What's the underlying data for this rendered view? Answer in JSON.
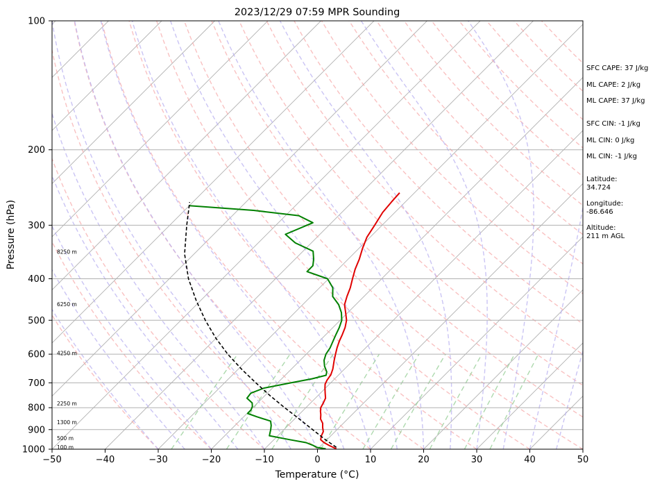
{
  "chart_data": {
    "type": "line",
    "subtype": "skew-T log-P sounding",
    "title": "2023/12/29 07:59 MPR Sounding",
    "xlabel": "Temperature (°C)",
    "ylabel": "Pressure (hPa)",
    "xlim": [
      -50,
      50
    ],
    "ylim": [
      1000,
      100
    ],
    "yscale": "log",
    "x_ticks": [
      -50,
      -40,
      -30,
      -20,
      -10,
      0,
      10,
      20,
      30,
      40,
      50
    ],
    "y_ticks": [
      100,
      200,
      300,
      400,
      500,
      600,
      700,
      800,
      900,
      1000
    ],
    "grid": true,
    "background_lines": {
      "isotherms": "gray solid, skewed",
      "dry_adiabats": "red dashed",
      "moist_adiabats": "blue dashed",
      "mixing_ratio_lines": "green dashed"
    },
    "height_labels": [
      {
        "label": "100 m",
        "pressure": 988
      },
      {
        "label": "500 m",
        "pressure": 942
      },
      {
        "label": "1300 m",
        "pressure": 864
      },
      {
        "label": "2250 m",
        "pressure": 781
      },
      {
        "label": "4250 m",
        "pressure": 596
      },
      {
        "label": "6250 m",
        "pressure": 458
      },
      {
        "label": "8250 m",
        "pressure": 346
      }
    ],
    "series": [
      {
        "key": "temperature",
        "color": "#e00000",
        "points": [
          [
            998,
            3.5
          ],
          [
            980,
            1.5
          ],
          [
            965,
            0
          ],
          [
            950,
            -1.2
          ],
          [
            930,
            -1.8
          ],
          [
            910,
            -2.2
          ],
          [
            890,
            -3.1
          ],
          [
            870,
            -3.9
          ],
          [
            850,
            -5.1
          ],
          [
            830,
            -5.9
          ],
          [
            815,
            -6.6
          ],
          [
            800,
            -7.2
          ],
          [
            780,
            -7.6
          ],
          [
            760,
            -8.1
          ],
          [
            740,
            -9.1
          ],
          [
            720,
            -10.1
          ],
          [
            705,
            -10.8
          ],
          [
            690,
            -11.2
          ],
          [
            670,
            -11.5
          ],
          [
            650,
            -12.2
          ],
          [
            620,
            -13.6
          ],
          [
            600,
            -14.5
          ],
          [
            580,
            -15.4
          ],
          [
            560,
            -16.2
          ],
          [
            540,
            -16.9
          ],
          [
            520,
            -17.7
          ],
          [
            500,
            -18.8
          ],
          [
            480,
            -20.4
          ],
          [
            460,
            -22.1
          ],
          [
            440,
            -23.2
          ],
          [
            420,
            -24.2
          ],
          [
            400,
            -25.5
          ],
          [
            380,
            -26.8
          ],
          [
            360,
            -27.9
          ],
          [
            340,
            -29.3
          ],
          [
            320,
            -30.6
          ],
          [
            300,
            -31.4
          ],
          [
            280,
            -32.3
          ],
          [
            265,
            -32.6
          ],
          [
            252,
            -32.8
          ]
        ]
      },
      {
        "key": "dewpoint",
        "color": "#008000",
        "points": [
          [
            998,
            1.5
          ],
          [
            990,
            -0.5
          ],
          [
            980,
            -1.5
          ],
          [
            965,
            -3.4
          ],
          [
            950,
            -7
          ],
          [
            930,
            -11.6
          ],
          [
            900,
            -12.5
          ],
          [
            880,
            -13.2
          ],
          [
            860,
            -14.1
          ],
          [
            840,
            -17.5
          ],
          [
            825,
            -19.9
          ],
          [
            810,
            -19.9
          ],
          [
            795,
            -20.3
          ],
          [
            780,
            -21
          ],
          [
            760,
            -22.9
          ],
          [
            740,
            -23.1
          ],
          [
            720,
            -21.6
          ],
          [
            700,
            -17.5
          ],
          [
            685,
            -14.3
          ],
          [
            672,
            -12.3
          ],
          [
            660,
            -12.8
          ],
          [
            640,
            -14.3
          ],
          [
            620,
            -15.5
          ],
          [
            600,
            -16.3
          ],
          [
            580,
            -16.7
          ],
          [
            560,
            -17.4
          ],
          [
            540,
            -18.1
          ],
          [
            520,
            -18.8
          ],
          [
            500,
            -19.7
          ],
          [
            480,
            -21.2
          ],
          [
            460,
            -23.2
          ],
          [
            440,
            -25.9
          ],
          [
            420,
            -27.5
          ],
          [
            400,
            -30.2
          ],
          [
            385,
            -35.4
          ],
          [
            373,
            -35.4
          ],
          [
            360,
            -36.5
          ],
          [
            345,
            -38.1
          ],
          [
            330,
            -43
          ],
          [
            315,
            -46.5
          ],
          [
            296,
            -43.5
          ],
          [
            285,
            -47.5
          ],
          [
            277,
            -57
          ],
          [
            270,
            -70
          ]
        ]
      },
      {
        "key": "parcel_profile",
        "color": "#000000",
        "dashed": true,
        "points": [
          [
            990,
            3.2
          ],
          [
            950,
            -0.3
          ],
          [
            900,
            -4.6
          ],
          [
            850,
            -9.1
          ],
          [
            800,
            -14
          ],
          [
            750,
            -19
          ],
          [
            700,
            -24.1
          ],
          [
            650,
            -29.4
          ],
          [
            600,
            -34.8
          ],
          [
            550,
            -40.1
          ],
          [
            500,
            -45.4
          ],
          [
            450,
            -50.8
          ],
          [
            400,
            -56.4
          ],
          [
            350,
            -61.8
          ],
          [
            300,
            -66.8
          ],
          [
            265,
            -70.6
          ]
        ]
      }
    ]
  },
  "info": {
    "sfc_cape": "SFC CAPE: 37 J/kg",
    "ml_cape_1": "ML CAPE: 2 J/kg",
    "ml_cape_2": "ML CAPE: 37 J/kg",
    "sfc_cin": "SFC CIN: -1 J/kg",
    "ml_cin_1": "ML CIN: 0 J/kg",
    "ml_cin_2": "ML CIN: -1 J/kg",
    "latitude": "Latitude:\n34.724",
    "longitude": "Longitude:\n-86.646",
    "altitude": "Altitude:\n211 m AGL"
  }
}
